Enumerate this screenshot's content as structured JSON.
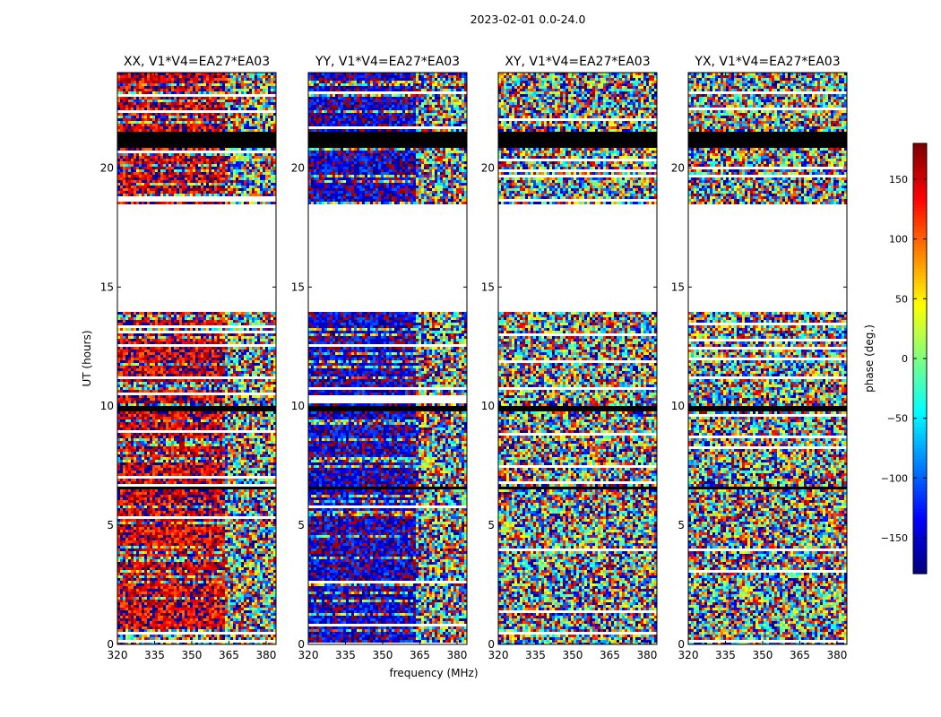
{
  "figure": {
    "suptitle": "2023-02-01 0.0-24.0",
    "xlabel": "frequency (MHz)",
    "ylabel": "UT (hours)"
  },
  "chart_data": {
    "type": "heatmap",
    "colormap": "jet",
    "x_range_mhz": [
      320,
      384
    ],
    "y_range_hours": [
      0,
      24
    ],
    "x_ticks": [
      320,
      335,
      350,
      365,
      380
    ],
    "y_ticks": [
      0,
      5,
      10,
      15,
      20
    ],
    "panels": [
      {
        "title": "XX, V1*V4=EA27*EA03",
        "polarization": "XX",
        "baseline": "V1*V4=EA27*EA03",
        "mean_phase_deg": 150,
        "coherent_until_mhz": 363
      },
      {
        "title": "YY, V1*V4=EA27*EA03",
        "polarization": "YY",
        "baseline": "V1*V4=EA27*EA03",
        "mean_phase_deg": -150,
        "coherent_until_mhz": 363
      },
      {
        "title": "XY, V1*V4=EA27*EA03",
        "polarization": "XY",
        "baseline": "V1*V4=EA27*EA03",
        "mean_phase_deg": null,
        "coherent_until_mhz": null
      },
      {
        "title": "YX, V1*V4=EA27*EA03",
        "polarization": "YX",
        "baseline": "V1*V4=EA27*EA03",
        "mean_phase_deg": null,
        "coherent_until_mhz": null
      }
    ],
    "data_gap_hours": [
      [
        13.95,
        18.5
      ]
    ],
    "flagged_bands_hours": [
      [
        20.8,
        21.5
      ],
      [
        9.8,
        9.95
      ],
      [
        6.55,
        6.65
      ]
    ],
    "colorbar": {
      "label": "phase (deg.)",
      "range": [
        -180,
        180
      ],
      "ticks": [
        150,
        100,
        50,
        0,
        -50,
        -100,
        -150
      ],
      "tick_labels": [
        "150",
        "100",
        "50",
        "0",
        "−50",
        "−100",
        "−150"
      ]
    }
  }
}
